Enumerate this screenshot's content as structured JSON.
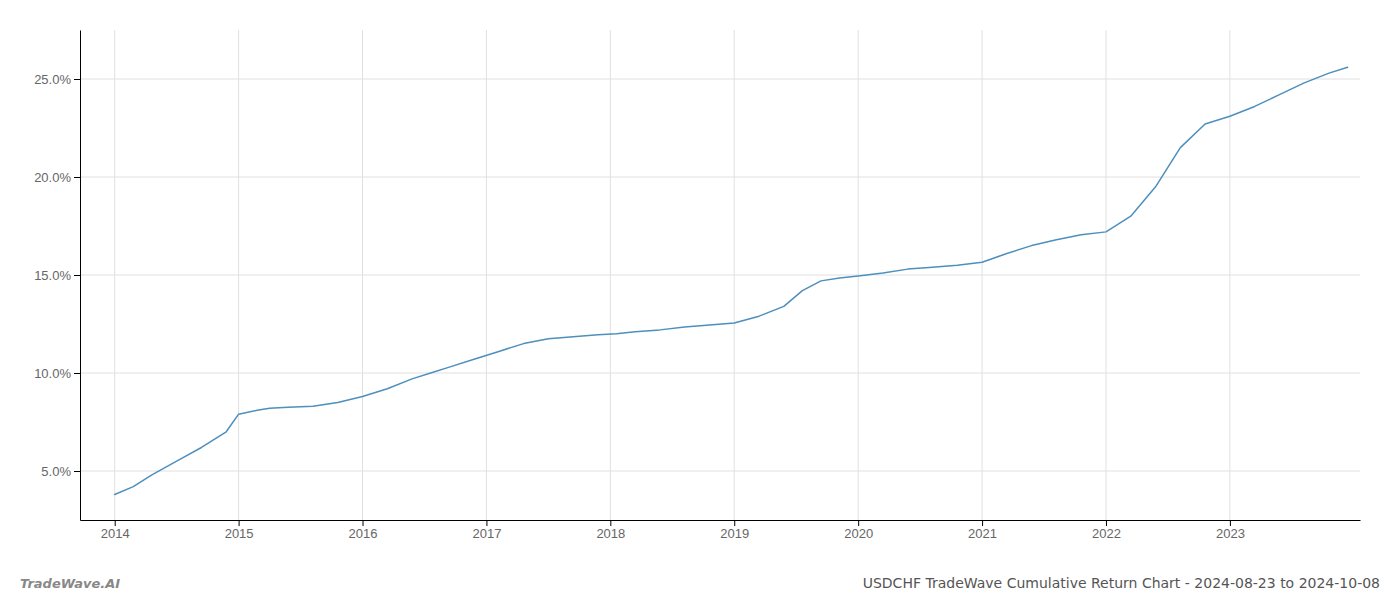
{
  "chart_data": {
    "type": "line",
    "title": "USDCHF TradeWave Cumulative Return Chart - 2024-08-23 to 2024-10-08",
    "annotations": [
      "TradeWave.AI"
    ],
    "x": [
      2014.0,
      2014.15,
      2014.3,
      2014.5,
      2014.7,
      2014.9,
      2015.0,
      2015.15,
      2015.25,
      2015.4,
      2015.6,
      2015.8,
      2016.0,
      2016.2,
      2016.4,
      2016.55,
      2016.7,
      2016.9,
      2017.1,
      2017.3,
      2017.5,
      2017.7,
      2017.9,
      2018.05,
      2018.2,
      2018.4,
      2018.6,
      2018.8,
      2019.0,
      2019.2,
      2019.4,
      2019.55,
      2019.7,
      2019.85,
      2020.0,
      2020.2,
      2020.4,
      2020.6,
      2020.8,
      2021.0,
      2021.2,
      2021.4,
      2021.6,
      2021.8,
      2022.0,
      2022.2,
      2022.4,
      2022.6,
      2022.8,
      2023.0,
      2023.2,
      2023.4,
      2023.6,
      2023.8,
      2023.95
    ],
    "values": [
      3.8,
      4.2,
      4.8,
      5.5,
      6.2,
      7.0,
      7.9,
      8.1,
      8.2,
      8.25,
      8.3,
      8.5,
      8.8,
      9.2,
      9.7,
      10.0,
      10.3,
      10.7,
      11.1,
      11.5,
      11.75,
      11.85,
      11.95,
      12.0,
      12.1,
      12.2,
      12.35,
      12.45,
      12.55,
      12.9,
      13.4,
      14.2,
      14.7,
      14.85,
      14.95,
      15.1,
      15.3,
      15.4,
      15.5,
      15.65,
      16.1,
      16.5,
      16.8,
      17.05,
      17.2,
      18.0,
      19.5,
      21.5,
      22.7,
      23.1,
      23.6,
      24.2,
      24.8,
      25.3,
      25.6
    ],
    "color": "#4d8fbd",
    "xlim": [
      2013.72,
      2024.05
    ],
    "xticks": [
      2014,
      2015,
      2016,
      2017,
      2018,
      2019,
      2020,
      2021,
      2022,
      2023
    ],
    "ylim": [
      2.5,
      27.5
    ],
    "yticks": [
      {
        "value": 5.0,
        "label": "5.0%"
      },
      {
        "value": 10.0,
        "label": "10.0%"
      },
      {
        "value": 15.0,
        "label": "15.0%"
      },
      {
        "value": 20.0,
        "label": "20.0%"
      },
      {
        "value": 25.0,
        "label": "25.0%"
      }
    ],
    "grid": true
  }
}
